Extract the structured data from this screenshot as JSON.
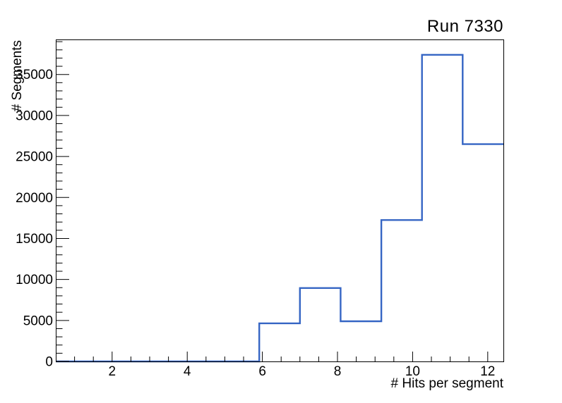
{
  "window": {
    "background_color": "#ffffff"
  },
  "chart_data": {
    "type": "bar",
    "subtype": "root-step-histogram",
    "title": "Run 7330",
    "xlabel": "# Hits per segment",
    "ylabel": "# Segments",
    "xlim": [
      0.5,
      12.417
    ],
    "ylim": [
      0,
      39270
    ],
    "x_major_ticks": [
      2,
      4,
      6,
      8,
      10,
      12
    ],
    "x_major_tick_labels": [
      "2",
      "4",
      "6",
      "8",
      "10",
      "12"
    ],
    "x_minor_tick_step": 0.5,
    "x_minor_tick_range": [
      1.0,
      12.0
    ],
    "y_major_ticks": [
      0,
      5000,
      10000,
      15000,
      20000,
      25000,
      30000,
      35000
    ],
    "y_major_tick_labels": [
      "0",
      "5000",
      "10000",
      "15000",
      "20000",
      "25000",
      "30000",
      "35000"
    ],
    "y_minor_tick_step": 1000,
    "y_minor_tick_range": [
      1000,
      39000
    ],
    "grid": false,
    "legend": false,
    "line_color": "#3565c4",
    "axis_color": "#000000",
    "bin_edges": [
      0.5,
      1.583,
      2.667,
      3.75,
      4.833,
      5.917,
      7.0,
      8.083,
      9.167,
      10.25,
      11.333,
      12.417
    ],
    "counts": [
      0,
      0,
      0,
      0,
      0,
      4650,
      8950,
      4900,
      17250,
      37400,
      26500
    ]
  }
}
